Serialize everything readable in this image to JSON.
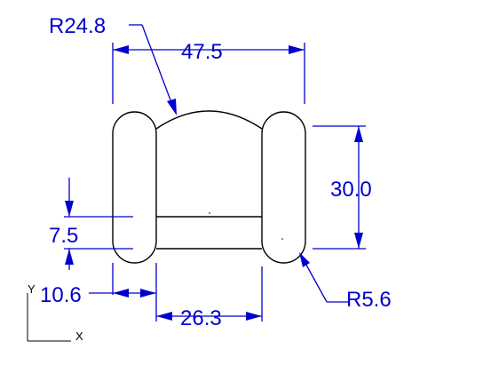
{
  "colors": {
    "background": "#ffffff",
    "geometry": "#000000",
    "dimension": "#0000cc"
  },
  "dimensions": {
    "top_radius": "R24.8",
    "overall_width": "47.5",
    "height": "30.0",
    "slot_height": "7.5",
    "left_offset": "10.6",
    "inner_width": "26.3",
    "end_radius": "R5.6"
  },
  "ucs": {
    "x_label": "X",
    "y_label": "Y"
  }
}
